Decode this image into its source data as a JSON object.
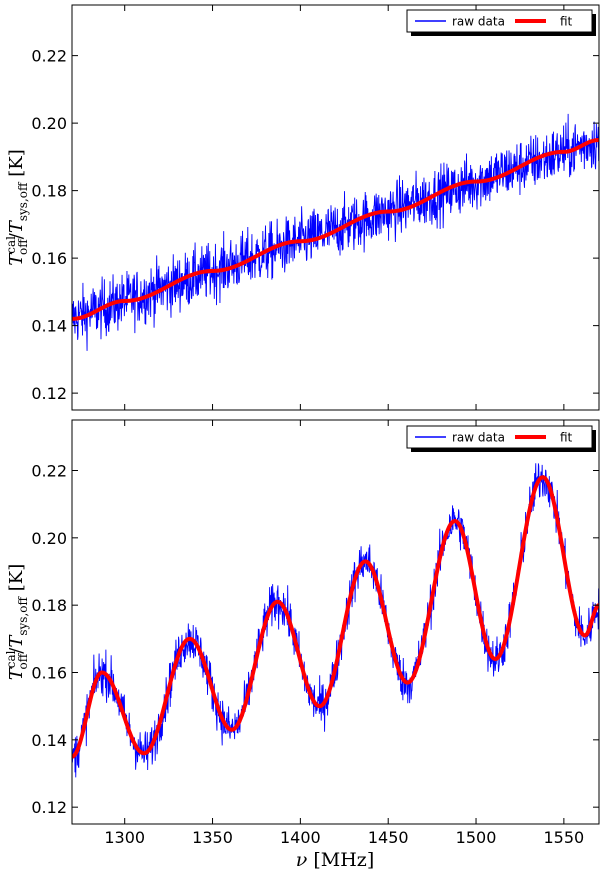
{
  "chart_data": [
    {
      "type": "line",
      "panel": "top",
      "xlim": [
        1270,
        1570
      ],
      "ylim": [
        0.115,
        0.235
      ],
      "yticks": [
        0.12,
        0.14,
        0.16,
        0.18,
        0.2,
        0.22
      ],
      "ytick_labels": [
        "0.12",
        "0.14",
        "0.16",
        "0.18",
        "0.20",
        "0.22"
      ],
      "xticks": [
        1300,
        1350,
        1400,
        1450,
        1500,
        1550
      ],
      "xtick_labels": [],
      "ylabel_parts": {
        "t1": "T",
        "sup": "cal",
        "sub1": "off",
        "slash": "/",
        "t2": "T",
        "sub2": "sys,off",
        "unit": " [K]"
      },
      "xlabel_parts": null,
      "legend": {
        "position": "upper right",
        "entries": [
          "raw data",
          "fit"
        ]
      },
      "series": [
        {
          "name": "raw data",
          "color": "#0000ff",
          "kind": "noise",
          "noise_amplitude": 0.009,
          "x": [
            1270,
            1570
          ],
          "y": [
            0.142,
            0.195
          ]
        },
        {
          "name": "fit",
          "color": "#ff0000",
          "x": [
            1270,
            1300,
            1350,
            1400,
            1450,
            1500,
            1550,
            1570
          ],
          "y": [
            0.142,
            0.1473,
            0.1562,
            0.165,
            0.1738,
            0.1827,
            0.1915,
            0.195
          ]
        }
      ]
    },
    {
      "type": "line",
      "panel": "bottom",
      "xlim": [
        1270,
        1570
      ],
      "ylim": [
        0.115,
        0.235
      ],
      "yticks": [
        0.12,
        0.14,
        0.16,
        0.18,
        0.2,
        0.22
      ],
      "ytick_labels": [
        "0.12",
        "0.14",
        "0.16",
        "0.18",
        "0.20",
        "0.22"
      ],
      "xticks": [
        1300,
        1350,
        1400,
        1450,
        1500,
        1550
      ],
      "xtick_labels": [
        "1300",
        "1350",
        "1400",
        "1450",
        "1500",
        "1550"
      ],
      "ylabel_parts": {
        "t1": "T",
        "sup": "cal",
        "sub1": "off",
        "slash": "/",
        "t2": "T",
        "sub2": "sys,off",
        "unit": " [K]"
      },
      "xlabel_parts": {
        "nu": "ν",
        "unit": " [MHz]"
      },
      "legend": {
        "position": "upper right",
        "entries": [
          "raw data",
          "fit"
        ]
      },
      "series": [
        {
          "name": "raw data",
          "color": "#0000ff",
          "kind": "noise",
          "noise_amplitude": 0.007
        },
        {
          "name": "fit",
          "color": "#ff0000",
          "x": [
            1270,
            1287,
            1311,
            1337,
            1361,
            1387,
            1411,
            1437,
            1461,
            1488,
            1511,
            1538,
            1562,
            1570
          ],
          "y": [
            0.135,
            0.16,
            0.136,
            0.17,
            0.143,
            0.181,
            0.15,
            0.193,
            0.157,
            0.205,
            0.164,
            0.218,
            0.171,
            0.18
          ]
        }
      ]
    }
  ]
}
